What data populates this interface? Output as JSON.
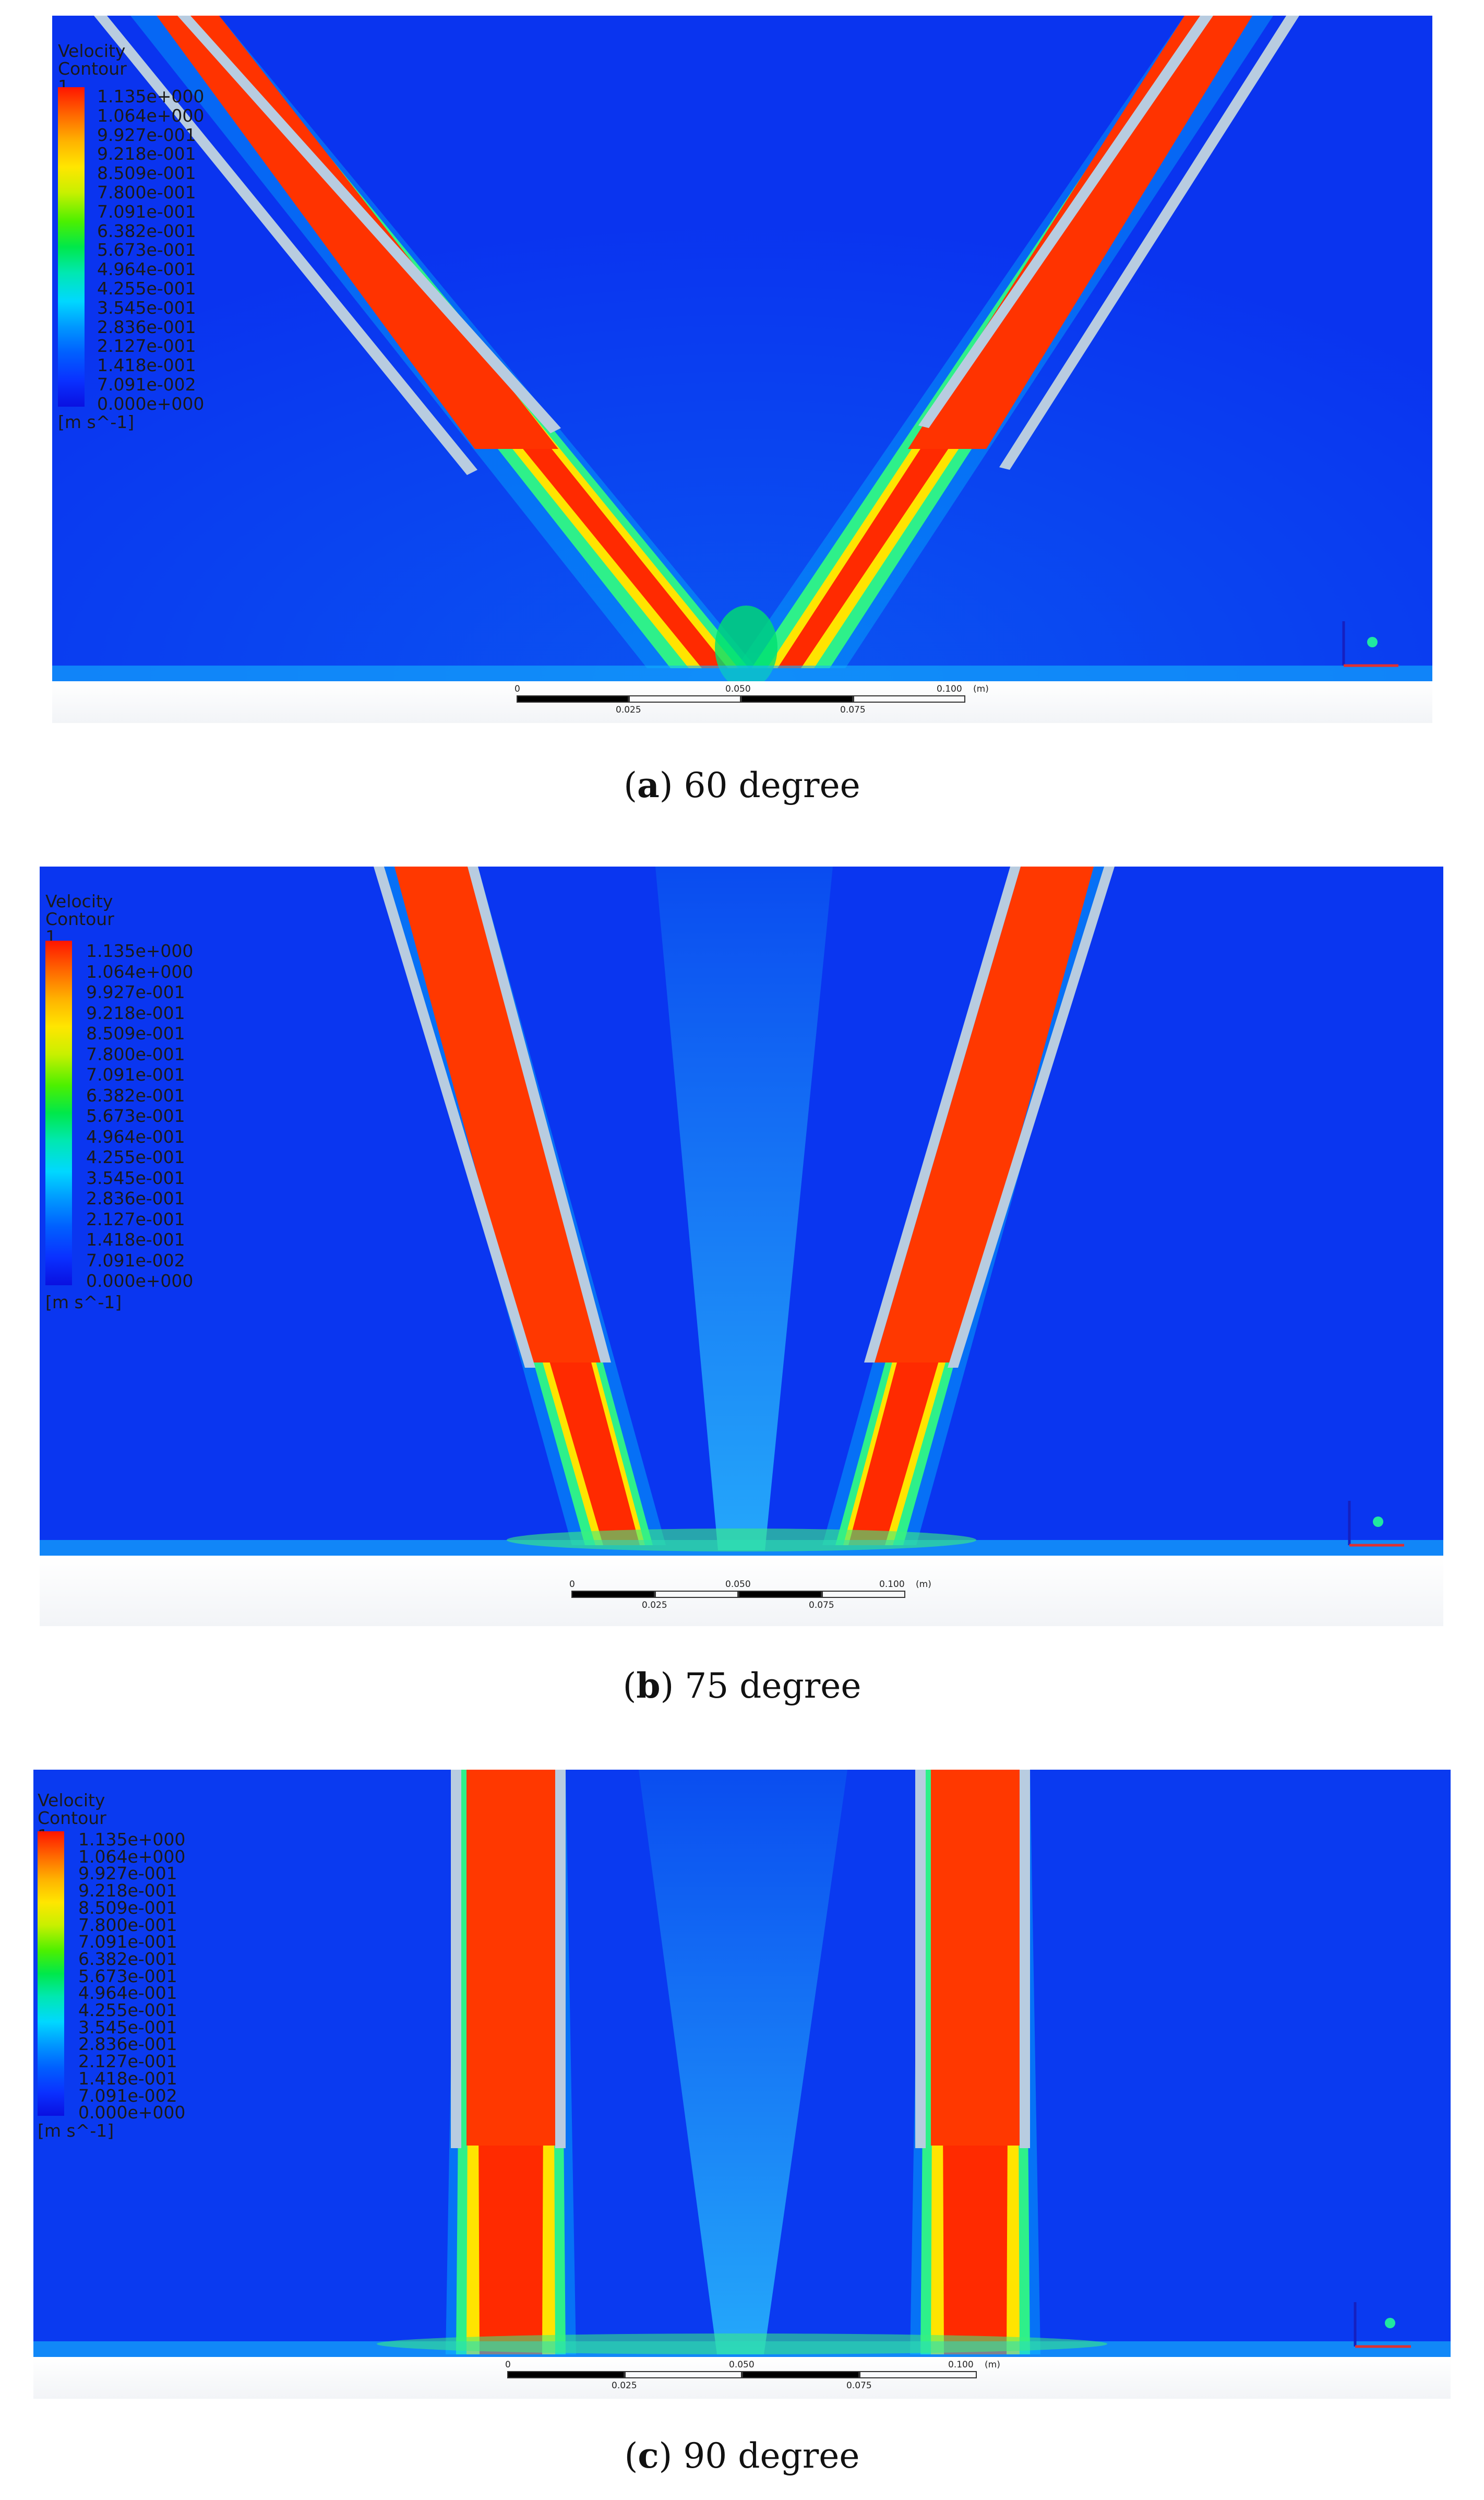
{
  "legend": {
    "title_line1": "Velocity",
    "title_line2": "Contour 1",
    "values": [
      "1.135e+000",
      "1.064e+000",
      "9.927e-001",
      "9.218e-001",
      "8.509e-001",
      "7.800e-001",
      "7.091e-001",
      "6.382e-001",
      "5.673e-001",
      "4.964e-001",
      "4.255e-001",
      "3.545e-001",
      "2.836e-001",
      "2.127e-001",
      "1.418e-001",
      "7.091e-002",
      "0.000e+000"
    ],
    "unit": "[m s^-1]"
  },
  "scale_bar": {
    "top_labels": [
      "0",
      "0.050",
      "0.100",
      "(m)"
    ],
    "bottom_labels": [
      "0.025",
      "0.075"
    ]
  },
  "panels": [
    {
      "id": "a",
      "caption_letter": "a",
      "caption_text": "60 degree"
    },
    {
      "id": "b",
      "caption_letter": "b",
      "caption_text": "75 degree"
    },
    {
      "id": "c",
      "caption_letter": "c",
      "caption_text": "90 degree"
    }
  ],
  "colors": {
    "background_field": "#0a35f0",
    "jet_core": "#ff2a00",
    "nozzle_wall": "#b8cce0"
  }
}
